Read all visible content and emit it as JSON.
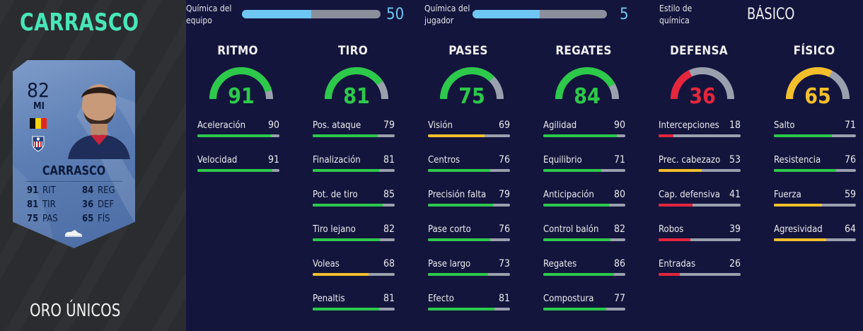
{
  "player": {
    "name": "CARRASCO",
    "version": "ORO ÚNICOS"
  },
  "card": {
    "rating": "82",
    "position": "MI",
    "name": "CARRASCO",
    "stats": [
      [
        {
          "value": "91",
          "label": "RIT"
        },
        {
          "value": "84",
          "label": "REG"
        }
      ],
      [
        {
          "value": "81",
          "label": "TIR"
        },
        {
          "value": "36",
          "label": "DEF"
        }
      ],
      [
        {
          "value": "75",
          "label": "PAS"
        },
        {
          "value": "65",
          "label": "FÍS"
        }
      ]
    ]
  },
  "chemistry": {
    "team": {
      "label_line1": "Química del",
      "label_line2": "equipo",
      "value": "50",
      "fraction": 0.5
    },
    "player": {
      "label_line1": "Química del",
      "label_line2": "jugador",
      "value": "5",
      "fraction": 0.5
    },
    "style": {
      "label_line1": "Estilo de",
      "label_line2": "química",
      "value": "BÁSICO"
    }
  },
  "colors": {
    "green": "#2cc94a",
    "yellow": "#f4bf2b",
    "red": "#e5263c",
    "track": "#9aa0ad",
    "accent": "#48e6b9",
    "chem": "#6ec7f2"
  },
  "categories": [
    {
      "title": "RITMO",
      "value": "91",
      "stats": [
        {
          "name": "Aceleración",
          "value": "90"
        },
        {
          "name": "Velocidad",
          "value": "91"
        }
      ]
    },
    {
      "title": "TIRO",
      "value": "81",
      "stats": [
        {
          "name": "Pos. ataque",
          "value": "79"
        },
        {
          "name": "Finalización",
          "value": "81"
        },
        {
          "name": "Pot. de tiro",
          "value": "85"
        },
        {
          "name": "Tiro lejano",
          "value": "82"
        },
        {
          "name": "Voleas",
          "value": "68"
        },
        {
          "name": "Penaltis",
          "value": "81"
        }
      ]
    },
    {
      "title": "PASES",
      "value": "75",
      "stats": [
        {
          "name": "Visión",
          "value": "69"
        },
        {
          "name": "Centros",
          "value": "76"
        },
        {
          "name": "Precisión falta",
          "value": "79"
        },
        {
          "name": "Pase corto",
          "value": "76"
        },
        {
          "name": "Pase largo",
          "value": "73"
        },
        {
          "name": "Efecto",
          "value": "81"
        }
      ]
    },
    {
      "title": "REGATES",
      "value": "84",
      "stats": [
        {
          "name": "Agilidad",
          "value": "90"
        },
        {
          "name": "Equilibrio",
          "value": "71"
        },
        {
          "name": "Anticipación",
          "value": "80"
        },
        {
          "name": "Control balón",
          "value": "82"
        },
        {
          "name": "Regates",
          "value": "86"
        },
        {
          "name": "Compostura",
          "value": "77"
        }
      ]
    },
    {
      "title": "DEFENSA",
      "value": "36",
      "stats": [
        {
          "name": "Intercepciones",
          "value": "18"
        },
        {
          "name": "Prec. cabezazo",
          "value": "53"
        },
        {
          "name": "Cap. defensiva",
          "value": "41"
        },
        {
          "name": "Robos",
          "value": "39"
        },
        {
          "name": "Entradas",
          "value": "26"
        }
      ]
    },
    {
      "title": "FÍSICO",
      "value": "65",
      "stats": [
        {
          "name": "Salto",
          "value": "71"
        },
        {
          "name": "Resistencia",
          "value": "76"
        },
        {
          "name": "Fuerza",
          "value": "59"
        },
        {
          "name": "Agresividad",
          "value": "64"
        }
      ]
    }
  ]
}
